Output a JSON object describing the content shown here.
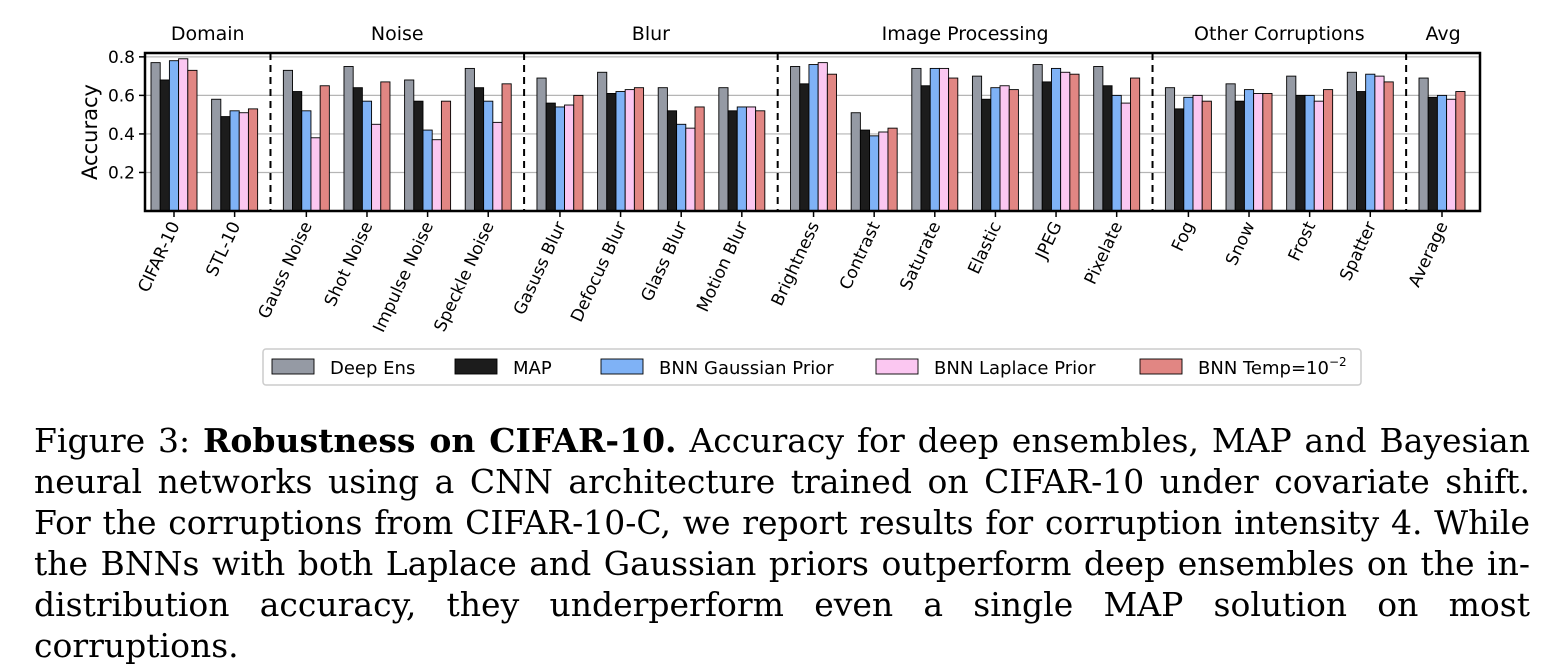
{
  "chart_data": {
    "type": "bar",
    "ylabel": "Accuracy",
    "ylim": [
      0,
      0.82
    ],
    "yticks": [
      "0.2",
      "0.4",
      "0.6",
      "0.8"
    ],
    "ytick_values": [
      0.2,
      0.4,
      0.6,
      0.8
    ],
    "grid": true,
    "legend_position": "bottom",
    "groups": [
      {
        "label": "Domain",
        "categories": [
          "CIFAR-10",
          "STL-10"
        ]
      },
      {
        "label": "Noise",
        "categories": [
          "Gauss Noise",
          "Shot Noise",
          "Impulse Noise",
          "Speckle Noise"
        ]
      },
      {
        "label": "Blur",
        "categories": [
          "Gasuss Blur",
          "Defocus Blur",
          "Glass Blur",
          "Motion Blur"
        ]
      },
      {
        "label": "Image Processing",
        "categories": [
          "Brightness",
          "Contrast",
          "Saturate",
          "Elastic",
          "JPEG",
          "Pixelate"
        ]
      },
      {
        "label": "Other Corruptions",
        "categories": [
          "Fog",
          "Snow",
          "Frost",
          "Spatter"
        ]
      },
      {
        "label": "Avg",
        "categories": [
          "Average"
        ]
      }
    ],
    "categories": [
      "CIFAR-10",
      "STL-10",
      "Gauss Noise",
      "Shot Noise",
      "Impulse Noise",
      "Speckle Noise",
      "Gasuss Blur",
      "Defocus Blur",
      "Glass Blur",
      "Motion Blur",
      "Brightness",
      "Contrast",
      "Saturate",
      "Elastic",
      "JPEG",
      "Pixelate",
      "Fog",
      "Snow",
      "Frost",
      "Spatter",
      "Average"
    ],
    "series": [
      {
        "name": "Deep Ens",
        "color": "#959aa4",
        "values": [
          0.77,
          0.58,
          0.73,
          0.75,
          0.68,
          0.74,
          0.69,
          0.72,
          0.64,
          0.64,
          0.75,
          0.51,
          0.74,
          0.7,
          0.76,
          0.75,
          0.64,
          0.66,
          0.7,
          0.72,
          0.69
        ]
      },
      {
        "name": "MAP",
        "color": "#1c1c1c",
        "values": [
          0.68,
          0.49,
          0.62,
          0.64,
          0.57,
          0.64,
          0.56,
          0.61,
          0.52,
          0.52,
          0.66,
          0.42,
          0.65,
          0.58,
          0.67,
          0.65,
          0.53,
          0.57,
          0.6,
          0.62,
          0.59
        ]
      },
      {
        "name": "BNN Gaussian Prior",
        "color": "#7fb2f6",
        "values": [
          0.78,
          0.52,
          0.52,
          0.57,
          0.42,
          0.57,
          0.54,
          0.62,
          0.45,
          0.54,
          0.76,
          0.39,
          0.74,
          0.64,
          0.74,
          0.6,
          0.59,
          0.63,
          0.6,
          0.71,
          0.6
        ]
      },
      {
        "name": "BNN Laplace Prior",
        "color": "#fbc7f1",
        "values": [
          0.79,
          0.51,
          0.38,
          0.45,
          0.37,
          0.46,
          0.55,
          0.63,
          0.43,
          0.54,
          0.77,
          0.41,
          0.74,
          0.65,
          0.72,
          0.56,
          0.6,
          0.61,
          0.57,
          0.7,
          0.58
        ]
      },
      {
        "name": "BNN Temp=10",
        "name_superscript": "−2",
        "color": "#e18683",
        "values": [
          0.73,
          0.53,
          0.65,
          0.67,
          0.57,
          0.66,
          0.6,
          0.64,
          0.54,
          0.52,
          0.71,
          0.43,
          0.69,
          0.63,
          0.71,
          0.69,
          0.57,
          0.61,
          0.63,
          0.67,
          0.62
        ]
      }
    ]
  },
  "caption": {
    "prefix": "Figure 3:",
    "title": "Robustness on CIFAR-10.",
    "body": "Accuracy for deep ensembles, MAP and Bayesian neural networks using a CNN architecture trained on CIFAR-10 under covariate shift. For the corruptions from CIFAR-10-C, we report results for corruption intensity 4. While the BNNs with both Laplace and Gaussian priors outperform deep ensembles on the in-distribution accuracy, they underperform even a single MAP solution on most corruptions."
  }
}
